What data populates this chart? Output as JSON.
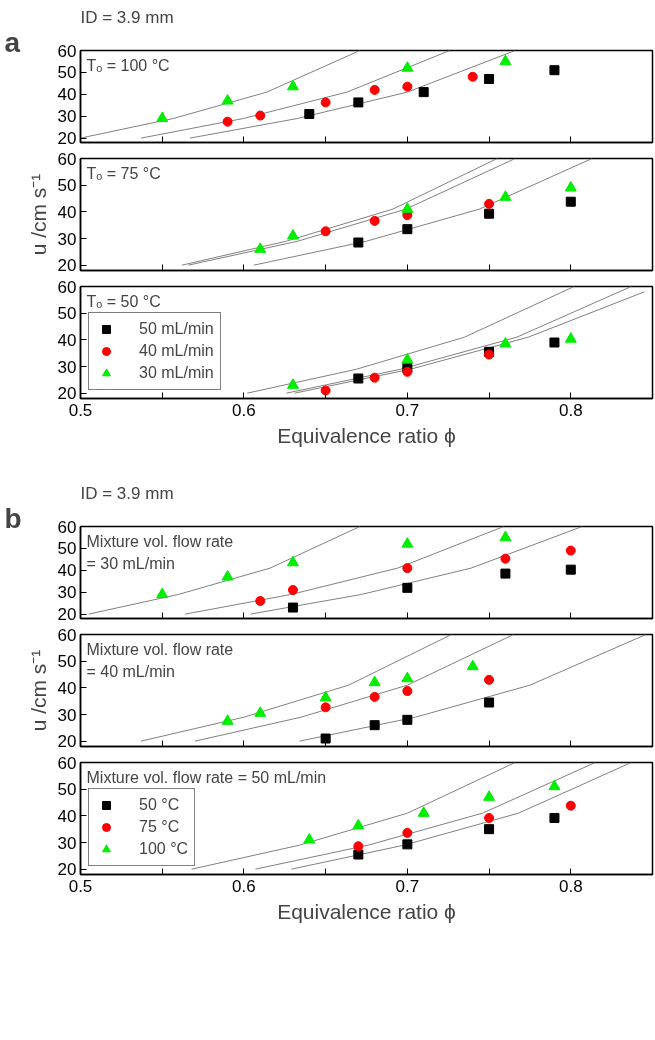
{
  "chart_data": [
    {
      "type": "scatter",
      "title": "ID = 3.9 mm",
      "annotations": [
        "a",
        "Tₒ = 100 °C"
      ],
      "xlim": [
        0.5,
        0.85
      ],
      "ylim": [
        18,
        60
      ],
      "xticks": [
        0.5,
        {
          "value": 0.55,
          "label": null
        },
        0.6,
        {
          "value": 0.65,
          "label": null
        },
        0.7,
        {
          "value": 0.75,
          "label": null
        },
        0.8
      ],
      "yticks": [
        20,
        30,
        40,
        50,
        60
      ],
      "tick_labels": "y",
      "legend": false,
      "grid": false,
      "series": [
        {
          "type": "line",
          "color": "#808080",
          "marker": "none",
          "x": [
            0.5,
            0.557,
            0.614,
            0.671
          ],
          "values": [
            20,
            29,
            41,
            60
          ]
        },
        {
          "type": "line",
          "color": "#808080",
          "marker": "none",
          "x": [
            0.537,
            0.6,
            0.663,
            0.726
          ],
          "values": [
            20,
            29,
            41,
            60
          ]
        },
        {
          "type": "line",
          "color": "#808080",
          "marker": "none",
          "x": [
            0.567,
            0.633,
            0.7,
            0.766
          ],
          "values": [
            20,
            29,
            41,
            60
          ]
        },
        {
          "color": "#000000",
          "marker": "square",
          "x": [
            0.64,
            0.67,
            0.71,
            0.75,
            0.79
          ],
          "values": [
            31,
            36.3,
            41,
            47,
            51
          ]
        },
        {
          "color": "#ff0000",
          "marker": "circle",
          "x": [
            0.59,
            0.61,
            0.65,
            0.68,
            0.7,
            0.74
          ],
          "values": [
            27.5,
            30.3,
            36.3,
            42,
            43.5,
            48
          ]
        },
        {
          "color": "#00ee00",
          "marker": "triangle",
          "x": [
            0.55,
            0.59,
            0.63,
            0.7,
            0.76
          ],
          "values": [
            29,
            37,
            43.5,
            52,
            55
          ]
        }
      ]
    },
    {
      "type": "scatter",
      "ylabel": "u /cm s⁻¹",
      "annotations": [
        "Tₒ = 75 °C"
      ],
      "xlim": [
        0.5,
        0.85
      ],
      "ylim": [
        18,
        60
      ],
      "xticks": [
        0.5,
        {
          "value": 0.55,
          "label": null
        },
        0.6,
        {
          "value": 0.65,
          "label": null
        },
        0.7,
        {
          "value": 0.75,
          "label": null
        },
        0.8
      ],
      "yticks": [
        20,
        30,
        40,
        50,
        60
      ],
      "tick_labels": "y",
      "legend": false,
      "grid": false,
      "series": [
        {
          "type": "line",
          "color": "#808080",
          "marker": "none",
          "x": [
            0.562,
            0.626,
            0.691,
            0.755
          ],
          "values": [
            20,
            29,
            41,
            60
          ]
        },
        {
          "type": "line",
          "color": "#808080",
          "marker": "none",
          "x": [
            0.566,
            0.633,
            0.699,
            0.766
          ],
          "values": [
            20,
            29,
            41,
            60
          ]
        },
        {
          "type": "line",
          "color": "#808080",
          "marker": "none",
          "x": [
            0.606,
            0.675,
            0.744,
            0.813
          ],
          "values": [
            20,
            29,
            41,
            60
          ]
        },
        {
          "color": "#000000",
          "marker": "square",
          "x": [
            0.67,
            0.7,
            0.75,
            0.8
          ],
          "values": [
            28.5,
            33.5,
            39.3,
            43.8
          ]
        },
        {
          "color": "#ff0000",
          "marker": "circle",
          "x": [
            0.65,
            0.68,
            0.7,
            0.75
          ],
          "values": [
            32.7,
            36.6,
            38.8,
            43
          ]
        },
        {
          "color": "#00ee00",
          "marker": "triangle",
          "x": [
            0.61,
            0.63,
            0.7,
            0.76,
            0.8
          ],
          "values": [
            26,
            31,
            41,
            45.5,
            49
          ]
        }
      ]
    },
    {
      "type": "scatter",
      "xlabel": "Equivalence ratio ϕ",
      "annotations": [
        "Tₒ = 50 °C"
      ],
      "xlim": [
        0.5,
        0.85
      ],
      "ylim": [
        18,
        60
      ],
      "xticks": [
        0.5,
        {
          "value": 0.55,
          "label": null
        },
        0.6,
        {
          "value": 0.65,
          "label": null
        },
        0.7,
        {
          "value": 0.75,
          "label": null
        },
        0.8
      ],
      "yticks": [
        20,
        30,
        40,
        50,
        60
      ],
      "legend": "bottom left",
      "grid": false,
      "series": [
        {
          "type": "line",
          "color": "#808080",
          "marker": "none",
          "x": [
            0.602,
            0.669,
            0.735,
            0.802
          ],
          "values": [
            20,
            29,
            41,
            60
          ]
        },
        {
          "type": "line",
          "color": "#808080",
          "marker": "none",
          "x": [
            0.626,
            0.696,
            0.767,
            0.837
          ],
          "values": [
            20,
            29,
            41,
            60
          ]
        },
        {
          "type": "line",
          "color": "#808080",
          "marker": "none",
          "x": [
            0.631,
            0.702,
            0.774,
            0.845
          ],
          "values": [
            20,
            29,
            41,
            58
          ]
        },
        {
          "name": "50 mL/min",
          "color": "#000000",
          "marker": "square",
          "x": [
            0.67,
            0.7,
            0.75,
            0.79
          ],
          "values": [
            25.5,
            29.5,
            35.5,
            39
          ]
        },
        {
          "name": "40 mL/min",
          "color": "#ff0000",
          "marker": "circle",
          "x": [
            0.65,
            0.68,
            0.7,
            0.75
          ],
          "values": [
            21,
            25.8,
            28,
            34.5
          ]
        },
        {
          "name": "30 mL/min",
          "color": "#00ee00",
          "marker": "triangle",
          "x": [
            0.63,
            0.7,
            0.76,
            0.8
          ],
          "values": [
            23,
            32.5,
            38.5,
            40.3
          ]
        }
      ]
    },
    {
      "type": "scatter",
      "title": "ID = 3.9 mm",
      "annotations": [
        "b",
        "Mixture vol. flow rate\n= 30 mL/min"
      ],
      "xlim": [
        0.5,
        0.85
      ],
      "ylim": [
        18,
        60
      ],
      "xticks": [
        0.5,
        {
          "value": 0.55,
          "label": null
        },
        0.6,
        {
          "value": 0.65,
          "label": null
        },
        0.7,
        {
          "value": 0.75,
          "label": null
        },
        0.8
      ],
      "yticks": [
        20,
        30,
        40,
        50,
        60
      ],
      "tick_labels": "y",
      "legend": false,
      "grid": false,
      "series": [
        {
          "type": "line",
          "color": "#808080",
          "marker": "none",
          "x": [
            0.505,
            0.56,
            0.616,
            0.671
          ],
          "values": [
            20,
            29,
            41,
            60
          ]
        },
        {
          "type": "line",
          "color": "#808080",
          "marker": "none",
          "x": [
            0.564,
            0.629,
            0.694,
            0.759
          ],
          "values": [
            20,
            29,
            41,
            60
          ]
        },
        {
          "type": "line",
          "color": "#808080",
          "marker": "none",
          "x": [
            0.604,
            0.672,
            0.739,
            0.807
          ],
          "values": [
            20,
            29,
            41,
            60
          ]
        },
        {
          "color": "#000000",
          "marker": "square",
          "x": [
            0.63,
            0.7,
            0.76,
            0.8
          ],
          "values": [
            23,
            32,
            38.5,
            40.3
          ]
        },
        {
          "color": "#ff0000",
          "marker": "circle",
          "x": [
            0.61,
            0.63,
            0.7,
            0.76,
            0.8
          ],
          "values": [
            26,
            31,
            41,
            45.3,
            49
          ]
        },
        {
          "color": "#00ee00",
          "marker": "triangle",
          "x": [
            0.55,
            0.59,
            0.63,
            0.7,
            0.76
          ],
          "values": [
            29,
            37,
            43.5,
            52,
            55
          ]
        }
      ]
    },
    {
      "type": "scatter",
      "ylabel": "u /cm s⁻¹",
      "annotations": [
        "Mixture vol. flow rate\n= 40 mL/min"
      ],
      "xlim": [
        0.5,
        0.85
      ],
      "ylim": [
        18,
        60
      ],
      "xticks": [
        0.5,
        {
          "value": 0.55,
          "label": null
        },
        0.6,
        {
          "value": 0.65,
          "label": null
        },
        0.7,
        {
          "value": 0.75,
          "label": null
        },
        0.8
      ],
      "yticks": [
        20,
        30,
        40,
        50,
        60
      ],
      "tick_labels": "y",
      "legend": false,
      "grid": false,
      "series": [
        {
          "type": "line",
          "color": "#808080",
          "marker": "none",
          "x": [
            0.537,
            0.6,
            0.664,
            0.727
          ],
          "values": [
            20,
            29,
            41,
            60
          ]
        },
        {
          "type": "line",
          "color": "#808080",
          "marker": "none",
          "x": [
            0.57,
            0.635,
            0.7,
            0.765
          ],
          "values": [
            20,
            29,
            41,
            60
          ]
        },
        {
          "type": "line",
          "color": "#808080",
          "marker": "none",
          "x": [
            0.634,
            0.705,
            0.775,
            0.846
          ],
          "values": [
            20,
            29,
            41,
            60
          ]
        },
        {
          "color": "#000000",
          "marker": "square",
          "x": [
            0.65,
            0.68,
            0.7,
            0.75
          ],
          "values": [
            21,
            26,
            28,
            34.5
          ]
        },
        {
          "color": "#ff0000",
          "marker": "circle",
          "x": [
            0.65,
            0.68,
            0.7,
            0.75
          ],
          "values": [
            32.7,
            36.6,
            38.8,
            43
          ]
        },
        {
          "color": "#00ee00",
          "marker": "triangle",
          "x": [
            0.59,
            0.61,
            0.65,
            0.68,
            0.7,
            0.74
          ],
          "values": [
            27.5,
            30.5,
            36.3,
            42,
            43.5,
            48
          ]
        }
      ]
    },
    {
      "type": "scatter",
      "xlabel": "Equivalence ratio ϕ",
      "annotations": [
        "Mixture vol. flow rate = 50 mL/min"
      ],
      "xlim": [
        0.5,
        0.85
      ],
      "ylim": [
        18,
        60
      ],
      "xticks": [
        0.5,
        {
          "value": 0.55,
          "label": null
        },
        0.6,
        {
          "value": 0.65,
          "label": null
        },
        0.7,
        {
          "value": 0.75,
          "label": null
        },
        0.8
      ],
      "yticks": [
        20,
        30,
        40,
        50,
        60
      ],
      "legend": "bottom left",
      "grid": false,
      "series": [
        {
          "type": "line",
          "color": "#808080",
          "marker": "none",
          "x": [
            0.568,
            0.634,
            0.7,
            0.766
          ],
          "values": [
            20,
            29,
            41,
            60
          ]
        },
        {
          "type": "line",
          "color": "#808080",
          "marker": "none",
          "x": [
            0.607,
            0.676,
            0.746,
            0.815
          ],
          "values": [
            20,
            29,
            41,
            60
          ]
        },
        {
          "type": "line",
          "color": "#808080",
          "marker": "none",
          "x": [
            0.629,
            0.698,
            0.768,
            0.837
          ],
          "values": [
            20,
            29,
            41,
            60
          ]
        },
        {
          "name": "50 °C",
          "color": "#000000",
          "marker": "square",
          "x": [
            0.67,
            0.7,
            0.75,
            0.79
          ],
          "values": [
            25.5,
            29.3,
            35,
            39.2
          ]
        },
        {
          "name": "75 °C",
          "color": "#ff0000",
          "marker": "circle",
          "x": [
            0.67,
            0.7,
            0.75,
            0.8
          ],
          "values": [
            28.6,
            33.6,
            39.2,
            43.8
          ]
        },
        {
          "name": "100 °C",
          "color": "#00ee00",
          "marker": "triangle",
          "x": [
            0.64,
            0.67,
            0.71,
            0.75,
            0.79
          ],
          "values": [
            31,
            36.3,
            41,
            47,
            51
          ]
        }
      ]
    }
  ]
}
